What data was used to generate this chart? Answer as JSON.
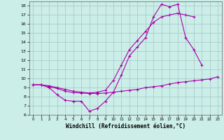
{
  "xlabel": "Windchill (Refroidissement éolien,°C)",
  "bg_color": "#cceee8",
  "grid_color": "#aacccc",
  "line_color": "#aa00aa",
  "xlim": [
    -0.5,
    23.5
  ],
  "ylim": [
    6,
    18.5
  ],
  "yticks": [
    6,
    7,
    8,
    9,
    10,
    11,
    12,
    13,
    14,
    15,
    16,
    17,
    18
  ],
  "xticks": [
    0,
    1,
    2,
    3,
    4,
    5,
    6,
    7,
    8,
    9,
    10,
    11,
    12,
    13,
    14,
    15,
    16,
    17,
    18,
    19,
    20,
    21,
    22,
    23
  ],
  "line1_x": [
    0,
    1,
    2,
    3,
    4,
    5,
    6,
    7,
    8,
    9,
    10,
    11,
    12,
    13,
    14,
    15,
    16,
    17,
    18,
    19,
    20,
    21,
    22,
    23
  ],
  "line1_y": [
    9.3,
    9.3,
    9.1,
    8.9,
    8.6,
    8.45,
    8.4,
    8.35,
    8.35,
    8.4,
    8.5,
    8.6,
    8.7,
    8.8,
    9.0,
    9.1,
    9.2,
    9.4,
    9.55,
    9.65,
    9.75,
    9.85,
    9.95,
    10.2
  ],
  "line2_x": [
    0,
    1,
    2,
    3,
    4,
    5,
    6,
    7,
    8,
    9,
    10,
    11,
    12,
    13,
    14,
    15,
    16,
    17,
    18,
    19,
    20,
    21
  ],
  "line2_y": [
    9.3,
    9.3,
    9.0,
    8.2,
    7.6,
    7.5,
    7.5,
    6.4,
    6.7,
    7.5,
    8.5,
    10.4,
    12.5,
    13.5,
    14.5,
    16.8,
    18.2,
    17.9,
    18.2,
    14.5,
    13.2,
    11.5
  ],
  "line3_x": [
    0,
    1,
    2,
    3,
    4,
    5,
    6,
    7,
    8,
    9,
    10,
    11,
    12,
    13,
    14,
    15,
    16,
    17,
    18,
    19,
    20
  ],
  "line3_y": [
    9.3,
    9.3,
    9.2,
    9.0,
    8.8,
    8.6,
    8.5,
    8.4,
    8.5,
    8.7,
    9.8,
    11.5,
    13.2,
    14.2,
    15.2,
    16.2,
    16.8,
    17.0,
    17.2,
    17.0,
    16.8
  ]
}
